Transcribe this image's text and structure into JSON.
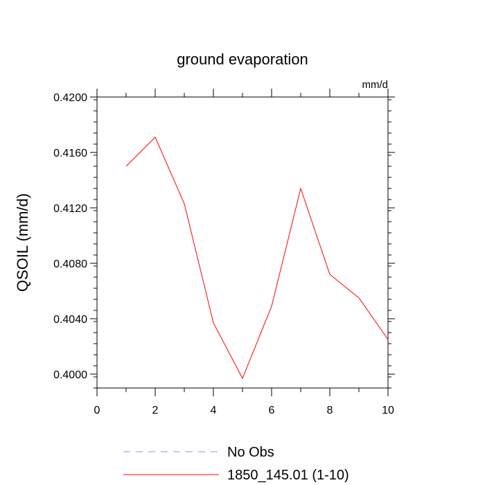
{
  "chart_data": {
    "type": "line",
    "title": "ground evaporation",
    "units_label": "mm/d",
    "ylabel": "QSOIL  (mm/d)",
    "xlabel": "",
    "xlim": [
      0,
      10
    ],
    "ylim": [
      0.399,
      0.42
    ],
    "x_ticks": [
      0,
      2,
      4,
      6,
      8,
      10
    ],
    "x_tick_labels": [
      "0",
      "2",
      "4",
      "6",
      "8",
      "10"
    ],
    "y_ticks": [
      0.4,
      0.404,
      0.408,
      0.412,
      0.416,
      0.42
    ],
    "y_tick_labels": [
      "0.4000",
      "0.4040",
      "0.4080",
      "0.4120",
      "0.4160",
      "0.4200"
    ],
    "grid": false,
    "legend_position": "bottom",
    "legend": [
      {
        "label": "No Obs",
        "color": "#8c8cf0",
        "style": "dashed"
      },
      {
        "label": "1850_145.01 (1-10)",
        "color": "#ff0000",
        "style": "solid"
      }
    ],
    "series": [
      {
        "name": "1850_145.01 (1-10)",
        "color": "#ff0000",
        "x": [
          1,
          2,
          3,
          4,
          5,
          6,
          7,
          8,
          9,
          10
        ],
        "values": [
          0.415,
          0.4171,
          0.4123,
          0.4037,
          0.3997,
          0.4049,
          0.4134,
          0.4072,
          0.4055,
          0.4025
        ]
      }
    ]
  }
}
